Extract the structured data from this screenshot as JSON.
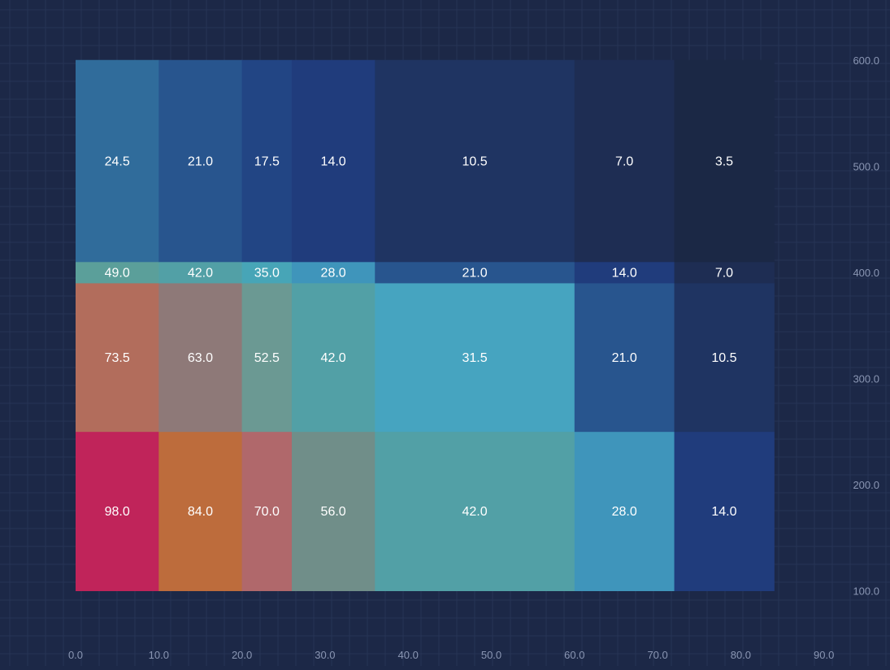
{
  "chart_data": {
    "type": "heatmap",
    "x_edges": [
      0,
      10,
      20,
      26,
      36,
      60,
      72,
      84
    ],
    "y_edges": [
      100,
      250,
      390,
      410,
      600
    ],
    "xlim": [
      0,
      90
    ],
    "ylim": [
      50,
      630
    ],
    "x_ticks": [
      "0.0",
      "10.0",
      "20.0",
      "30.0",
      "40.0",
      "50.0",
      "60.0",
      "70.0",
      "80.0",
      "90.0"
    ],
    "y_ticks": [
      "100.0",
      "200.0",
      "300.0",
      "400.0",
      "500.0",
      "600.0"
    ],
    "grid": true,
    "y_axis_position": "right",
    "rows": [
      {
        "y_range": [
          100,
          250
        ],
        "values": [
          98.0,
          84.0,
          70.0,
          56.0,
          42.0,
          28.0,
          14.0
        ],
        "labels": [
          "98.0",
          "84.0",
          "70.0",
          "56.0",
          "42.0",
          "28.0",
          "14.0"
        ]
      },
      {
        "y_range": [
          250,
          390
        ],
        "values": [
          73.5,
          63.0,
          52.5,
          42.0,
          31.5,
          21.0,
          10.5
        ],
        "labels": [
          "73.5",
          "63.0",
          "52.5",
          "42.0",
          "31.5",
          "21.0",
          "10.5"
        ]
      },
      {
        "y_range": [
          390,
          410
        ],
        "values": [
          49.0,
          42.0,
          35.0,
          28.0,
          21.0,
          14.0,
          7.0
        ],
        "labels": [
          "49.0",
          "42.0",
          "35.0",
          "28.0",
          "21.0",
          "14.0",
          "7.0"
        ]
      },
      {
        "y_range": [
          410,
          600
        ],
        "values": [
          24.5,
          21.0,
          17.5,
          14.0,
          10.5,
          7.0,
          3.5
        ],
        "labels": [
          "24.5",
          "21.0",
          "17.5",
          "14.0",
          "10.5",
          "7.0",
          "3.5"
        ]
      }
    ],
    "colors": {
      "98.0": "#c0245a",
      "84.0": "#bd6c3c",
      "73.5": "#b26d5c",
      "70.0": "#b0686b",
      "63.0": "#8e7978",
      "56.0": "#708e89",
      "52.5": "#6b9993",
      "49.0": "#5b9f9a",
      "42.0": "#52a0a6",
      "35.0": "#47a5b7",
      "31.5": "#46a4c0",
      "28.0": "#3f95bb",
      "24.5": "#306c9b",
      "21.0": "#28558e",
      "17.5": "#224584",
      "14.0": "#203c7c",
      "10.5": "#1f3462",
      "7.0": "#1e2d53",
      "3.5": "#1b2845"
    }
  }
}
